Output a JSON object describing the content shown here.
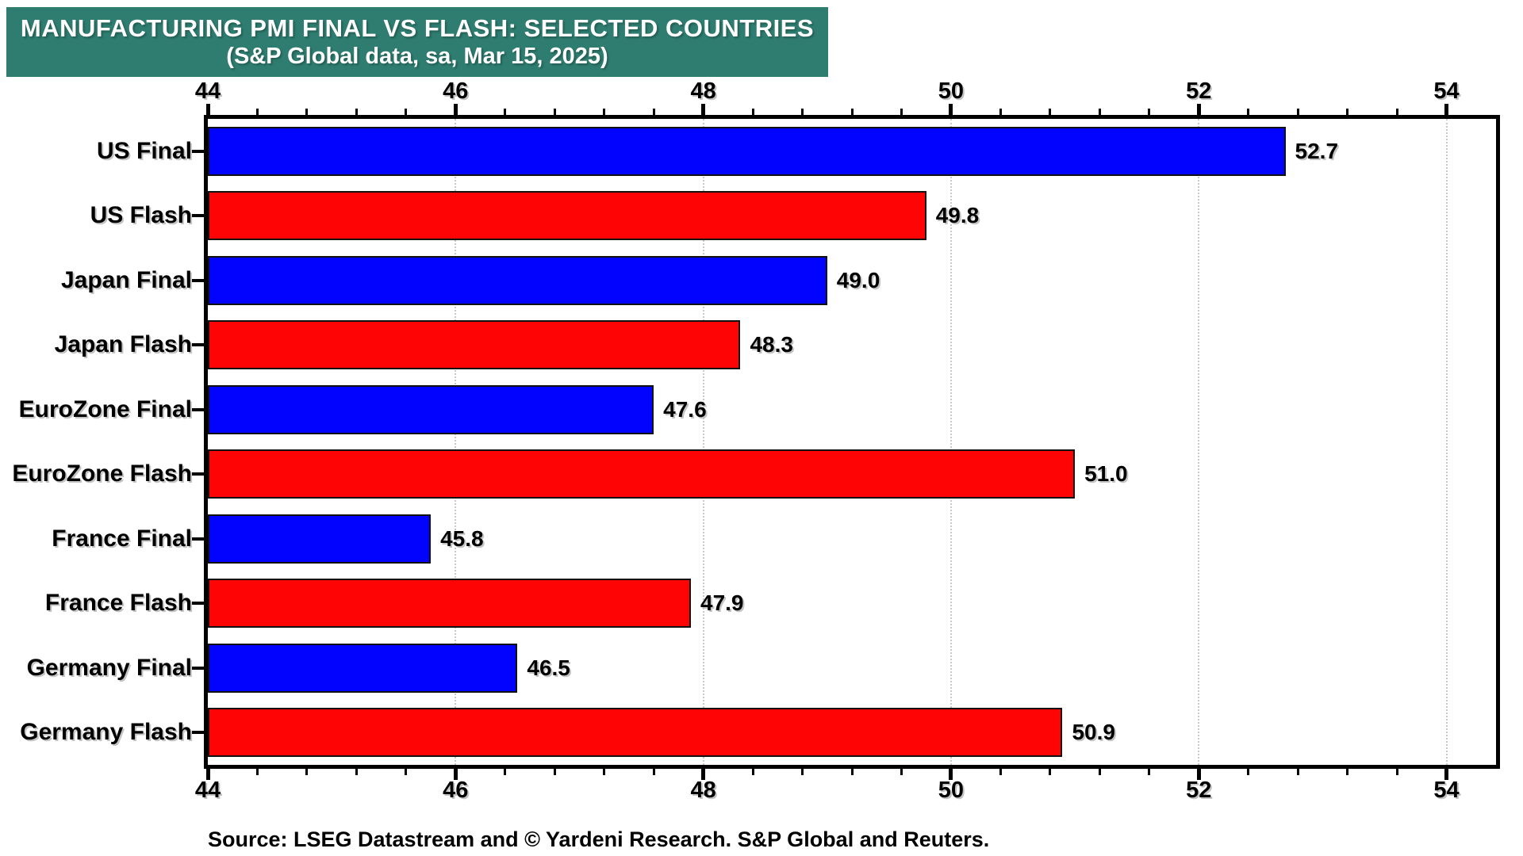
{
  "banner": {
    "title": "MANUFACTURING PMI FINAL VS FLASH: SELECTED COUNTRIES",
    "subtitle": "(S&P Global data, sa, Mar 15, 2025)"
  },
  "source_note": "Source: LSEG Datastream and © Yardeni Research. S&P Global and Reuters.",
  "colors": {
    "banner_bg": "#2E7D70",
    "banner_text": "#FFFFFF",
    "final_bar": "#0202FF",
    "flash_bar": "#FF0404",
    "bar_border": "#111111",
    "frame": "#000000",
    "grid": "#C9C9C9",
    "text": "#000000"
  },
  "chart_data": {
    "type": "bar",
    "orientation": "horizontal",
    "title": "MANUFACTURING PMI FINAL VS FLASH: SELECTED COUNTRIES",
    "subtitle": "(S&P Global data, sa, Mar 15, 2025)",
    "xlabel": "",
    "ylabel": "",
    "xlim": [
      44,
      54.4
    ],
    "x_major_ticks": [
      44,
      46,
      48,
      50,
      52,
      54
    ],
    "x_minor_tick_step": 0.4,
    "grid_on": true,
    "gridline_positions": [
      46,
      48,
      50,
      52,
      54
    ],
    "axis_label_positions": [
      "top",
      "bottom"
    ],
    "legend": "none",
    "rows": [
      {
        "label": "US Final",
        "value": 52.7,
        "value_label": "52.7",
        "series": "final"
      },
      {
        "label": "US Flash",
        "value": 49.8,
        "value_label": "49.8",
        "series": "flash"
      },
      {
        "label": "Japan Final",
        "value": 49.0,
        "value_label": "49.0",
        "series": "final"
      },
      {
        "label": "Japan Flash",
        "value": 48.3,
        "value_label": "48.3",
        "series": "flash"
      },
      {
        "label": "EuroZone Final",
        "value": 47.6,
        "value_label": "47.6",
        "series": "final"
      },
      {
        "label": "EuroZone Flash",
        "value": 51.0,
        "value_label": "51.0",
        "series": "flash"
      },
      {
        "label": "France Final",
        "value": 45.8,
        "value_label": "45.8",
        "series": "final"
      },
      {
        "label": "France Flash",
        "value": 47.9,
        "value_label": "47.9",
        "series": "flash"
      },
      {
        "label": "Germany Final",
        "value": 46.5,
        "value_label": "46.5",
        "series": "final"
      },
      {
        "label": "Germany Flash",
        "value": 50.9,
        "value_label": "50.9",
        "series": "flash"
      }
    ]
  }
}
